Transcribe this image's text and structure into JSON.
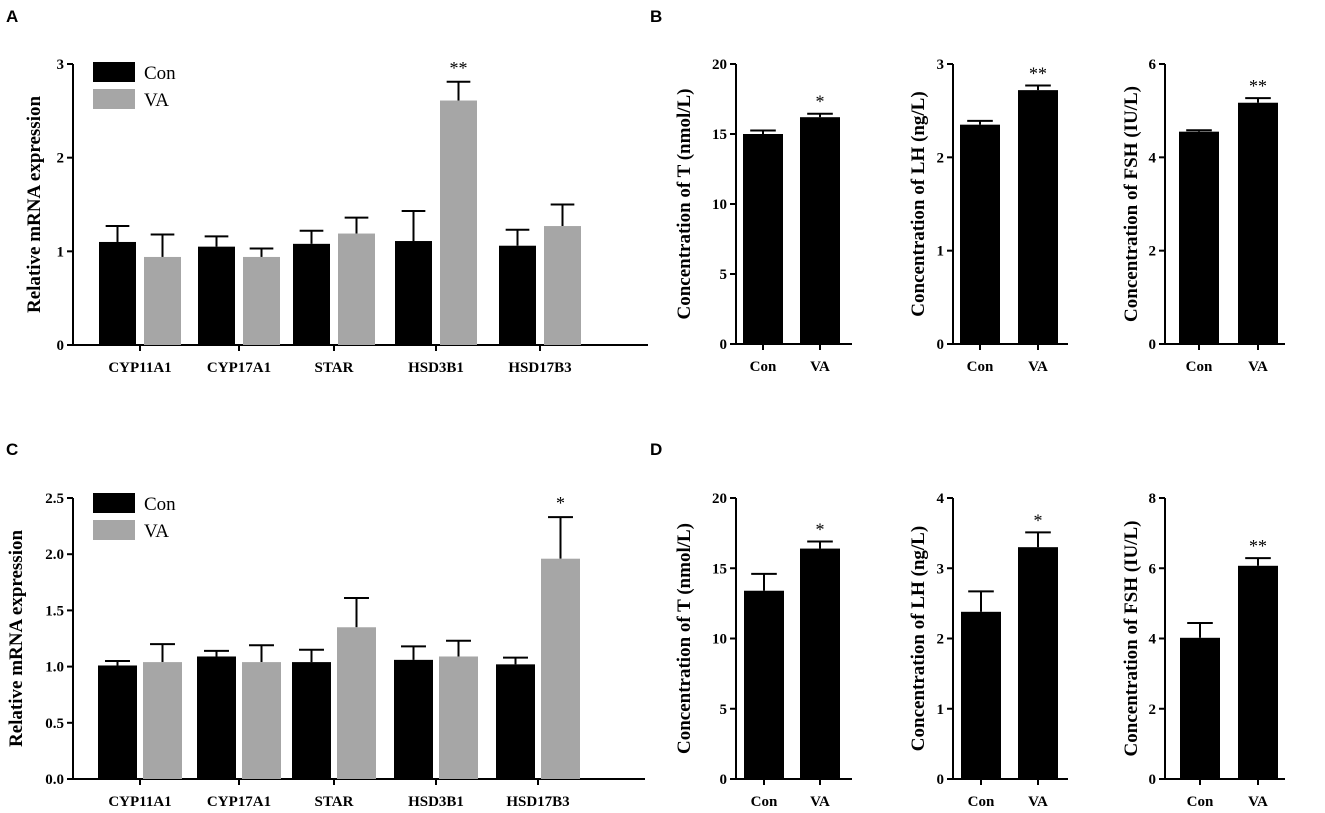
{
  "colors": {
    "con": "#000000",
    "va": "#a6a6a6",
    "axis": "#000000"
  },
  "chart_data": [
    {
      "panel": "A",
      "type": "bar",
      "ylabel": "Relative mRNA expression",
      "ylim": [
        0,
        3
      ],
      "yticks": [
        "0",
        "1",
        "2",
        "3"
      ],
      "ytick_values": [
        0,
        1,
        2,
        3
      ],
      "categories": [
        "CYP11A1",
        "CYP17A1",
        "STAR",
        "HSD3B1",
        "HSD17B3"
      ],
      "legend": [
        "Con",
        "VA"
      ],
      "series": [
        {
          "name": "Con",
          "values": [
            1.1,
            1.05,
            1.08,
            1.11,
            1.06
          ],
          "errors": [
            0.17,
            0.11,
            0.14,
            0.32,
            0.17
          ]
        },
        {
          "name": "VA",
          "values": [
            0.94,
            0.94,
            1.19,
            2.61,
            1.27
          ],
          "errors": [
            0.24,
            0.09,
            0.17,
            0.2,
            0.23
          ]
        }
      ],
      "annotations": [
        {
          "category": 3,
          "series": 1,
          "text": "**"
        }
      ]
    },
    {
      "panel": "B",
      "type": "bar",
      "ylabel": "Concentration of T (nmol/L)",
      "ylim": [
        0,
        20
      ],
      "yticks": [
        "0",
        "5",
        "10",
        "15",
        "20"
      ],
      "ytick_values": [
        0,
        5,
        10,
        15,
        20
      ],
      "categories": [
        "Con",
        "VA"
      ],
      "values": [
        15.0,
        16.2
      ],
      "errors": [
        0.25,
        0.25
      ],
      "annotations": [
        {
          "category": 1,
          "text": "*"
        }
      ]
    },
    {
      "type": "bar",
      "ylabel": "Concentration of LH (ng/L)",
      "ylim": [
        0,
        3
      ],
      "yticks": [
        "0",
        "1",
        "2",
        "3"
      ],
      "ytick_values": [
        0,
        1,
        2,
        3
      ],
      "categories": [
        "Con",
        "VA"
      ],
      "values": [
        2.35,
        2.72
      ],
      "errors": [
        0.04,
        0.05
      ],
      "annotations": [
        {
          "category": 1,
          "text": "**"
        }
      ]
    },
    {
      "type": "bar",
      "ylabel": "Concentration of FSH (IU/L)",
      "ylim": [
        0,
        6
      ],
      "yticks": [
        "0",
        "2",
        "4",
        "6"
      ],
      "ytick_values": [
        0,
        2,
        4,
        6
      ],
      "categories": [
        "Con",
        "VA"
      ],
      "values": [
        4.55,
        5.17
      ],
      "errors": [
        0.03,
        0.1
      ],
      "annotations": [
        {
          "category": 1,
          "text": "**"
        }
      ]
    },
    {
      "panel": "C",
      "type": "bar",
      "ylabel": "Relative mRNA expression",
      "ylim": [
        0,
        2.5
      ],
      "yticks": [
        "0.0",
        "0.5",
        "1.0",
        "1.5",
        "2.0",
        "2.5"
      ],
      "ytick_values": [
        0,
        0.5,
        1.0,
        1.5,
        2.0,
        2.5
      ],
      "categories": [
        "CYP11A1",
        "CYP17A1",
        "STAR",
        "HSD3B1",
        "HSD17B3"
      ],
      "legend": [
        "Con",
        "VA"
      ],
      "series": [
        {
          "name": "Con",
          "values": [
            1.01,
            1.09,
            1.04,
            1.06,
            1.02
          ],
          "errors": [
            0.04,
            0.05,
            0.11,
            0.12,
            0.06
          ]
        },
        {
          "name": "VA",
          "values": [
            1.04,
            1.04,
            1.35,
            1.09,
            1.96
          ],
          "errors": [
            0.16,
            0.15,
            0.26,
            0.14,
            0.37
          ]
        }
      ],
      "annotations": [
        {
          "category": 4,
          "series": 1,
          "text": "*"
        }
      ]
    },
    {
      "panel": "D",
      "type": "bar",
      "ylabel": "Concentration of T (nmol/L)",
      "ylim": [
        0,
        20
      ],
      "yticks": [
        "0",
        "5",
        "10",
        "15",
        "20"
      ],
      "ytick_values": [
        0,
        5,
        10,
        15,
        20
      ],
      "categories": [
        "Con",
        "VA"
      ],
      "values": [
        13.4,
        16.4
      ],
      "errors": [
        1.2,
        0.5
      ],
      "annotations": [
        {
          "category": 1,
          "text": "*"
        }
      ]
    },
    {
      "type": "bar",
      "ylabel": "Concentration of LH (ng/L)",
      "ylim": [
        0,
        4
      ],
      "yticks": [
        "0",
        "1",
        "2",
        "3",
        "4"
      ],
      "ytick_values": [
        0,
        1,
        2,
        3,
        4
      ],
      "categories": [
        "Con",
        "VA"
      ],
      "values": [
        2.38,
        3.3
      ],
      "errors": [
        0.29,
        0.21
      ],
      "annotations": [
        {
          "category": 1,
          "text": "*"
        }
      ]
    },
    {
      "type": "bar",
      "ylabel": "Concentration of FSH (IU/L)",
      "ylim": [
        0,
        8
      ],
      "yticks": [
        "0",
        "2",
        "4",
        "6",
        "8"
      ],
      "ytick_values": [
        0,
        2,
        4,
        6,
        8
      ],
      "categories": [
        "Con",
        "VA"
      ],
      "values": [
        4.02,
        6.07
      ],
      "errors": [
        0.42,
        0.22
      ],
      "annotations": [
        {
          "category": 1,
          "text": "**"
        }
      ]
    }
  ]
}
